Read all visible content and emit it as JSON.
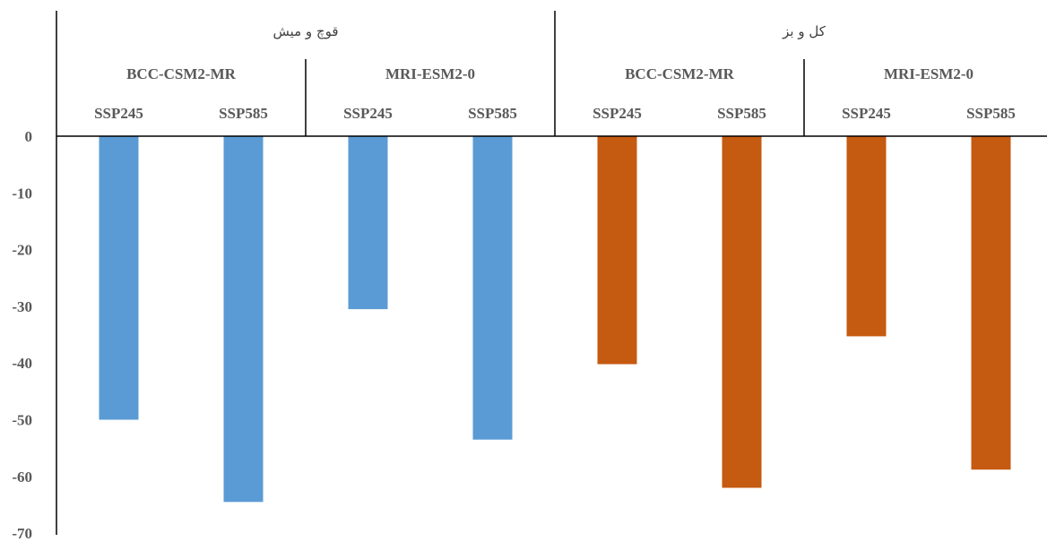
{
  "chart_data": {
    "type": "bar",
    "ylim": [
      -70,
      0
    ],
    "yticks": [
      "0",
      "-10",
      "-20",
      "-30",
      "-40",
      "-50",
      "-60",
      "-70"
    ],
    "ytick_values": [
      0,
      -10,
      -20,
      -30,
      -40,
      -50,
      -60,
      -70
    ],
    "groups": [
      {
        "name": "قوچ و میش",
        "color": "#5B9BD5",
        "models": [
          {
            "name": "BCC-CSM2-MR",
            "bars": [
              {
                "scenario": "SSP245",
                "value": -50
              },
              {
                "scenario": "SSP585",
                "value": -64.5
              }
            ]
          },
          {
            "name": "MRI-ESM2-0",
            "bars": [
              {
                "scenario": "SSP245",
                "value": -30.5
              },
              {
                "scenario": "SSP585",
                "value": -53.5
              }
            ]
          }
        ]
      },
      {
        "name": "کل و بز",
        "color": "#C55A11",
        "models": [
          {
            "name": "BCC-CSM2-MR",
            "bars": [
              {
                "scenario": "SSP245",
                "value": -40.2
              },
              {
                "scenario": "SSP585",
                "value": -62
              }
            ]
          },
          {
            "name": "MRI-ESM2-0",
            "bars": [
              {
                "scenario": "SSP245",
                "value": -35.3
              },
              {
                "scenario": "SSP585",
                "value": -58.8
              }
            ]
          }
        ]
      }
    ]
  }
}
